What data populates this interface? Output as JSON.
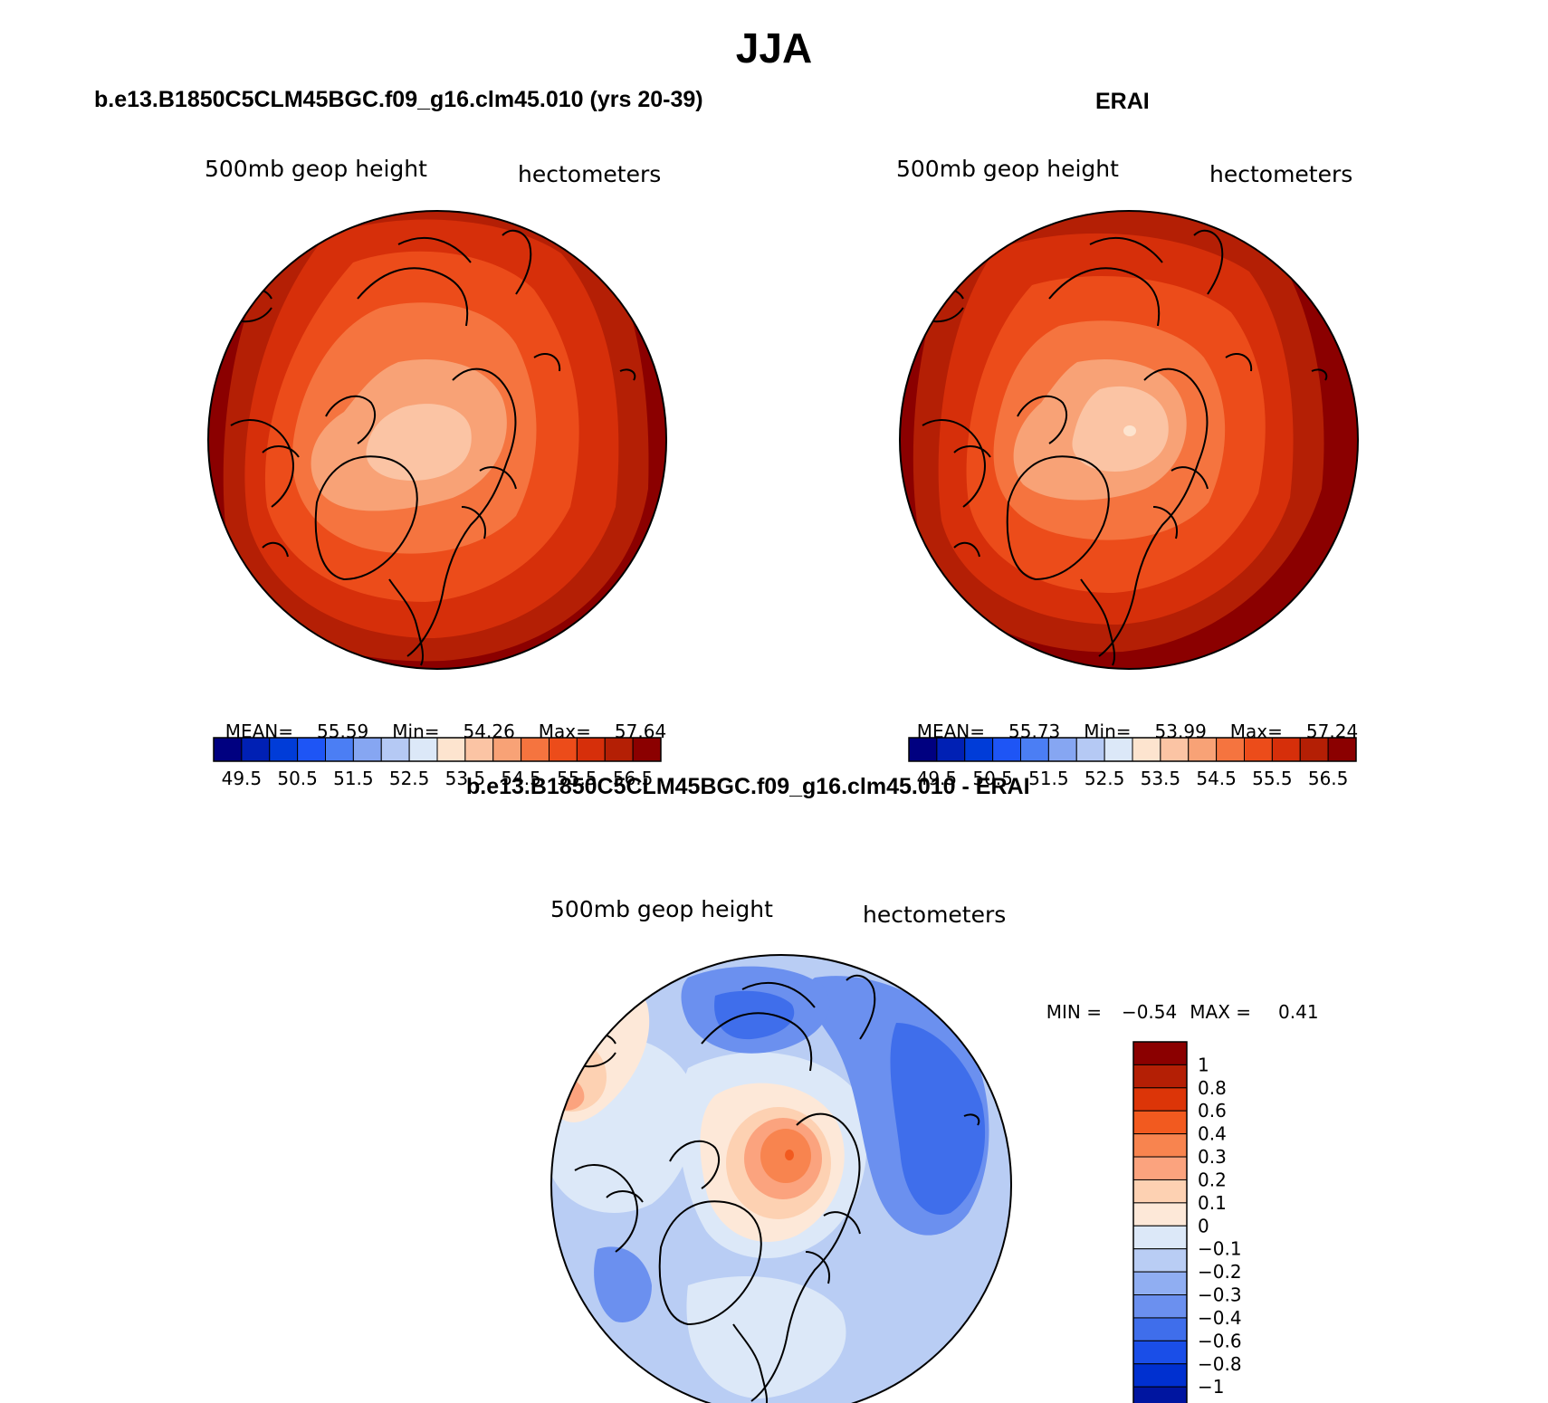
{
  "page": {
    "title": "JJA"
  },
  "panels": {
    "model": {
      "title": "b.e13.B1850C5CLM45BGC.f09_g16.clm45.010 (yrs 20-39)",
      "var_label": "500mb geop height",
      "units": "hectometers",
      "stats": {
        "mean_label": "MEAN=",
        "mean": "55.59",
        "min_label": "Min=",
        "min": "54.26",
        "max_label": "Max=",
        "max": "57.64"
      }
    },
    "obs": {
      "title": "ERAI",
      "var_label": "500mb geop height",
      "units": "hectometers",
      "stats": {
        "mean_label": "MEAN=",
        "mean": "55.73",
        "min_label": "Min=",
        "min": "53.99",
        "max_label": "Max=",
        "max": "57.24"
      }
    },
    "diff": {
      "title": "b.e13.B1850C5CLM45BGC.f09_g16.clm45.010 - ERAI",
      "var_label": "500mb geop height",
      "units": "hectometers",
      "stats": {
        "min_label": "MIN =",
        "min": "−0.54",
        "max_label": "MAX =",
        "max": "0.41"
      }
    }
  },
  "colorbars": {
    "abs_colors": [
      "#000080",
      "#0020b4",
      "#003cd8",
      "#1e55f5",
      "#4b7ef4",
      "#86a6f2",
      "#b5c9f4",
      "#dce8f8",
      "#fde4cf",
      "#fbc4a4",
      "#f8a276",
      "#f5743f",
      "#ec4c1a",
      "#d62f0a",
      "#b41f05",
      "#8b0000"
    ],
    "abs_labels": [
      "49.5",
      "50.5",
      "51.5",
      "52.5",
      "53.5",
      "54.5",
      "55.5",
      "56.5"
    ],
    "diff_colors": [
      "#8b0000",
      "#b41f05",
      "#dc3508",
      "#f25a1f",
      "#f8844f",
      "#fba37e",
      "#fdd1b2",
      "#fde8d8",
      "#dce8f8",
      "#b9cdf4",
      "#90aef2",
      "#6b90ef",
      "#3f6eeb",
      "#1a4ee8",
      "#0030d0",
      "#0015a0",
      "#000080"
    ],
    "diff_labels": [
      "1",
      "0.8",
      "0.6",
      "0.4",
      "0.3",
      "0.2",
      "0.1",
      "0",
      "−0.1",
      "−0.2",
      "−0.3",
      "−0.4",
      "−0.6",
      "−0.8",
      "−1"
    ]
  },
  "maps": {
    "model_fill": [
      "#8b0000",
      "#b41f05",
      "#d62f0a",
      "#ec4c1a",
      "#f5743f",
      "#f8a276",
      "#fbc4a4"
    ],
    "obs_fill": [
      "#8b0000",
      "#b41f05",
      "#d62f0a",
      "#ec4c1a",
      "#f5743f",
      "#f8a276",
      "#fbc4a4",
      "#fde4cf"
    ],
    "diff_fill": {
      "background": "#b9cdf4",
      "light": "#dce8f8",
      "mid_blue": "#90aef2",
      "blue": "#6b90ef",
      "deep_blue": "#3f6eeb",
      "pos1": "#fde8d8",
      "pos2": "#fdd1b2",
      "pos3": "#fba37e",
      "pos4": "#f8844f",
      "pos5": "#f25a1f"
    }
  }
}
